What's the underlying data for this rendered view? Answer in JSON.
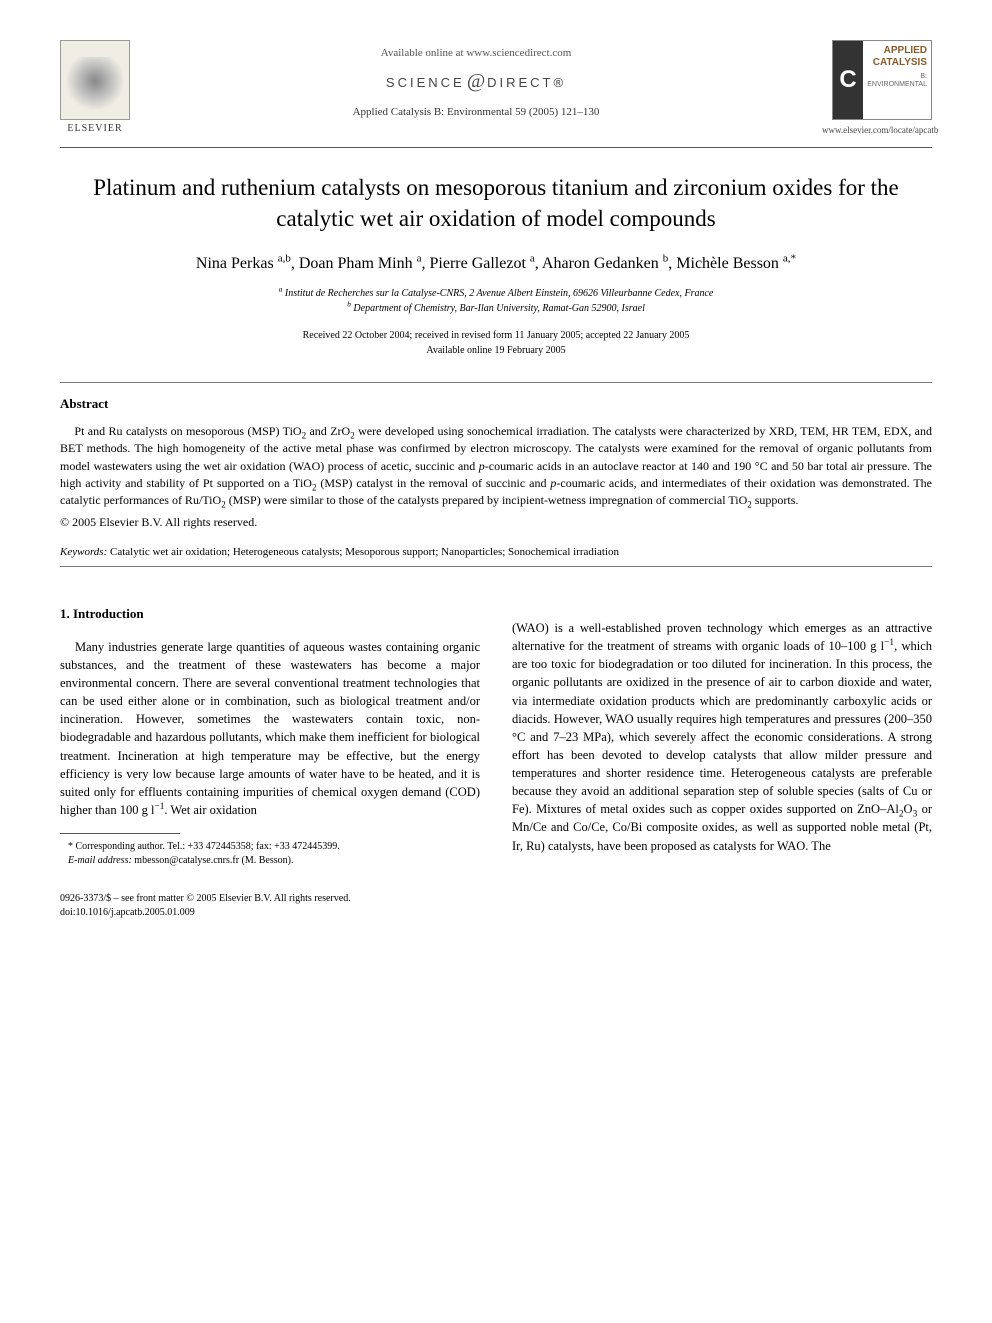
{
  "header": {
    "available_online": "Available online at www.sciencedirect.com",
    "sciencedirect_left": "SCIENCE",
    "sciencedirect_right": "DIRECT®",
    "journal_ref": "Applied Catalysis B: Environmental 59 (2005) 121–130",
    "elsevier_label": "ELSEVIER",
    "journal_cover_letter": "C",
    "journal_cover_title1": "APPLIED CATALYSIS",
    "journal_cover_title2": "B: ENVIRONMENTAL",
    "journal_url": "www.elsevier.com/locate/apcatb"
  },
  "title": "Platinum and ruthenium catalysts on mesoporous titanium and zirconium oxides for the catalytic wet air oxidation of model compounds",
  "authors_html": "Nina Perkas <sup>a,b</sup>, Doan Pham Minh <sup>a</sup>, Pierre Gallezot <sup>a</sup>, Aharon Gedanken <sup>b</sup>, Michèle Besson <sup>a,*</sup>",
  "affiliations": {
    "a": "Institut de Recherches sur la Catalyse-CNRS, 2 Avenue Albert Einstein, 69626 Villeurbanne Cedex, France",
    "b": "Department of Chemistry, Bar-Ilan University, Ramat-Gan 52900, Israel"
  },
  "dates": {
    "received": "Received 22 October 2004; received in revised form 11 January 2005; accepted 22 January 2005",
    "online": "Available online 19 February 2005"
  },
  "abstract": {
    "heading": "Abstract",
    "text_html": "Pt and Ru catalysts on mesoporous (MSP) TiO<sub>2</sub> and ZrO<sub>2</sub> were developed using sonochemical irradiation. The catalysts were characterized by XRD, TEM, HR TEM, EDX, and BET methods. The high homogeneity of the active metal phase was confirmed by electron microscopy. The catalysts were examined for the removal of organic pollutants from model wastewaters using the wet air oxidation (WAO) process of acetic, succinic and <i>p</i>-coumaric acids in an autoclave reactor at 140 and 190 °C and 50 bar total air pressure. The high activity and stability of Pt supported on a TiO<sub>2</sub> (MSP) catalyst in the removal of succinic and <i>p</i>-coumaric acids, and intermediates of their oxidation was demonstrated. The catalytic performances of Ru/TiO<sub>2</sub> (MSP) were similar to those of the catalysts prepared by incipient-wetness impregnation of commercial TiO<sub>2</sub> supports.",
    "copyright": "© 2005 Elsevier B.V. All rights reserved."
  },
  "keywords": {
    "label": "Keywords:",
    "text": "Catalytic wet air oxidation; Heterogeneous catalysts; Mesoporous support; Nanoparticles; Sonochemical irradiation"
  },
  "section1": {
    "heading": "1. Introduction",
    "col1_html": "Many industries generate large quantities of aqueous wastes containing organic substances, and the treatment of these wastewaters has become a major environmental concern. There are several conventional treatment technologies that can be used either alone or in combination, such as biological treatment and/or incineration. However, sometimes the wastewaters contain toxic, non-biodegradable and hazardous pollutants, which make them inefficient for biological treatment. Incineration at high temperature may be effective, but the energy efficiency is very low because large amounts of water have to be heated, and it is suited only for effluents containing impurities of chemical oxygen demand (COD) higher than 100 g l<sup>−1</sup>. Wet air oxidation",
    "col2_html": "(WAO) is a well-established proven technology which emerges as an attractive alternative for the treatment of streams with organic loads of 10–100 g l<sup>−1</sup>, which are too toxic for biodegradation or too diluted for incineration. In this process, the organic pollutants are oxidized in the presence of air to carbon dioxide and water, via intermediate oxidation products which are predominantly carboxylic acids or diacids. However, WAO usually requires high temperatures and pressures (200–350 °C and 7–23 MPa), which severely affect the economic considerations. A strong effort has been devoted to develop catalysts that allow milder pressure and temperatures and shorter residence time. Heterogeneous catalysts are preferable because they avoid an additional separation step of soluble species (salts of Cu or Fe). Mixtures of metal oxides such as copper oxides supported on ZnO–Al<sub>2</sub>O<sub>3</sub> or Mn/Ce and Co/Ce, Co/Bi composite oxides, as well as supported noble metal (Pt, Ir, Ru) catalysts, have been proposed as catalysts for WAO. The"
  },
  "footnote": {
    "corr": "* Corresponding author. Tel.: +33 472445358; fax: +33 472445399.",
    "email_label": "E-mail address:",
    "email": "mbesson@catalyse.cnrs.fr (M. Besson)."
  },
  "footer": {
    "issn": "0926-3373/$ – see front matter © 2005 Elsevier B.V. All rights reserved.",
    "doi": "doi:10.1016/j.apcatb.2005.01.009"
  },
  "colors": {
    "text": "#000000",
    "rule": "#555555",
    "muted": "#555555",
    "journal_brown": "#8a5a2a"
  }
}
